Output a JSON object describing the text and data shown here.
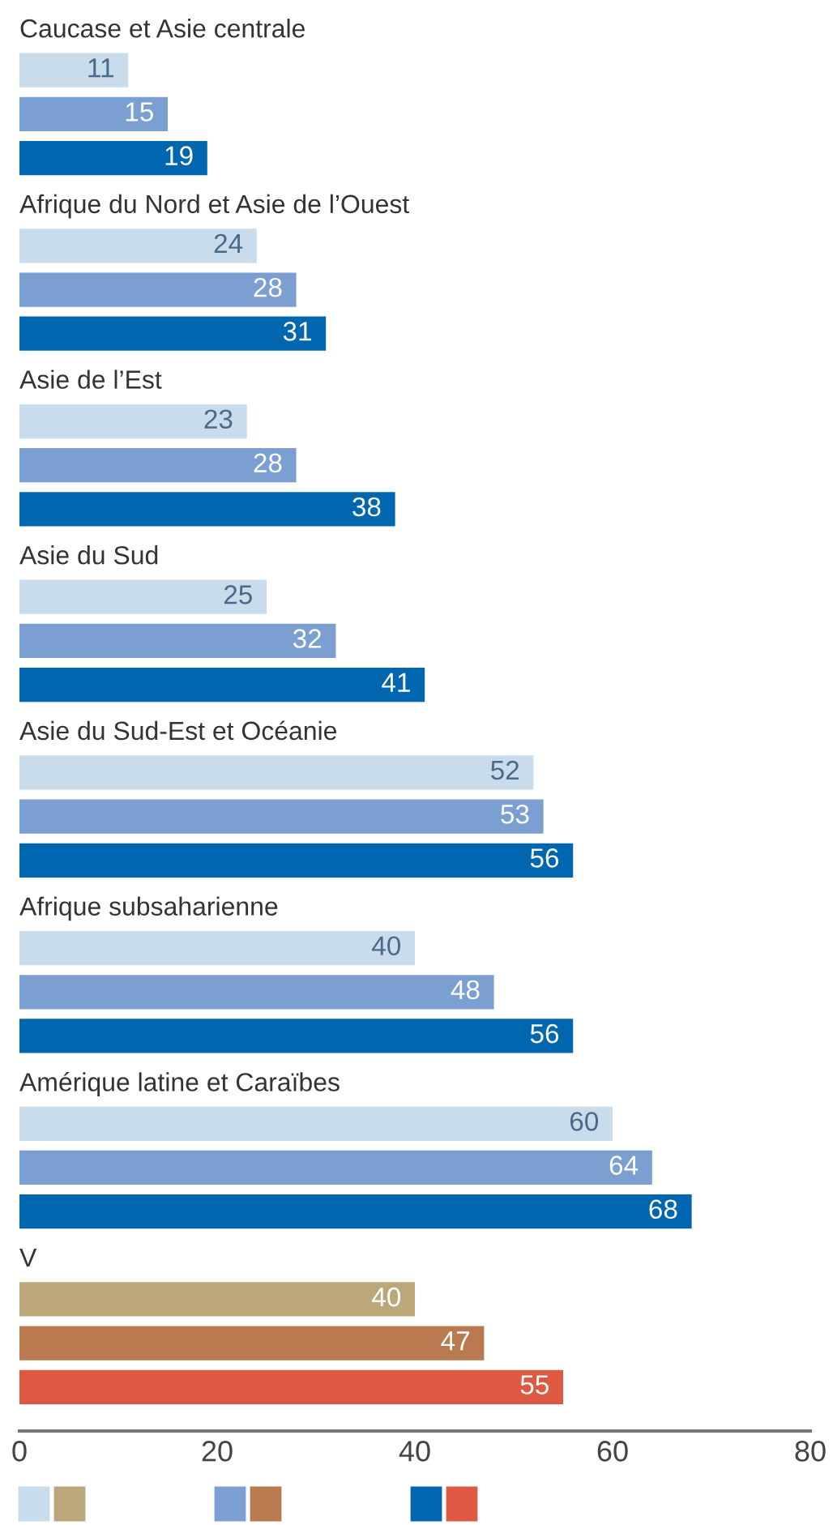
{
  "chart_data": {
    "type": "bar",
    "orientation": "horizontal",
    "categories": [
      "Caucase et Asie centrale",
      "Afrique du Nord et Asie de l’Ouest",
      "Asie de l’Est",
      "Asie du Sud",
      "Asie du Sud-Est et Océanie",
      "Afrique subsaharienne",
      "Amérique latine et Caraïbes",
      "V"
    ],
    "series": [
      {
        "color": "#c8dceb",
        "colors": [
          "#c8dceb",
          "#c8dceb",
          "#c8dceb",
          "#c8dceb",
          "#c8dceb",
          "#c8dceb",
          "#c8dceb",
          "#bca77a"
        ],
        "values": [
          11,
          24,
          23,
          25,
          52,
          40,
          60,
          40
        ]
      },
      {
        "color": "#7c9fd1",
        "colors": [
          "#7c9fd1",
          "#7c9fd1",
          "#7c9fd1",
          "#7c9fd1",
          "#7c9fd1",
          "#7c9fd1",
          "#7c9fd1",
          "#b97a50"
        ],
        "values": [
          15,
          28,
          28,
          32,
          53,
          48,
          64,
          47
        ]
      },
      {
        "color": "#0066b0",
        "colors": [
          "#0066b0",
          "#0066b0",
          "#0066b0",
          "#0066b0",
          "#0066b0",
          "#0066b0",
          "#0066b0",
          "#dd5942"
        ],
        "values": [
          19,
          31,
          38,
          41,
          56,
          56,
          68,
          55
        ]
      }
    ],
    "xlim": [
      0,
      80
    ],
    "xticks": [
      0,
      20,
      40,
      60,
      80
    ],
    "data_labels": true,
    "grid": false,
    "legend": false
  }
}
